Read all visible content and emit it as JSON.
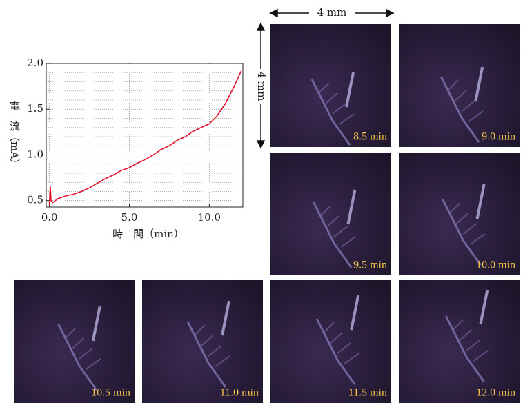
{
  "chart_data": {
    "type": "line",
    "xlabel": "時　間（min）",
    "ylabel": "電　流（mA）",
    "x": [
      0,
      0.05,
      0.1,
      0.2,
      0.3,
      0.5,
      1,
      1.5,
      2,
      2.5,
      3,
      3.5,
      4,
      4.5,
      5,
      5.5,
      6,
      6.5,
      7,
      7.5,
      8,
      8.5,
      9,
      9.5,
      10,
      10.5,
      11,
      11.5,
      12
    ],
    "series": [
      {
        "color": "#e0102a",
        "values": [
          0.45,
          0.66,
          0.5,
          0.48,
          0.49,
          0.52,
          0.55,
          0.57,
          0.6,
          0.64,
          0.69,
          0.74,
          0.78,
          0.83,
          0.86,
          0.91,
          0.95,
          1.0,
          1.06,
          1.1,
          1.16,
          1.2,
          1.26,
          1.3,
          1.34,
          1.43,
          1.56,
          1.73,
          1.92
        ]
      }
    ],
    "xlim": [
      -0.2,
      12.1
    ],
    "ylim": [
      0.43,
      2.0
    ],
    "xticks": [
      {
        "value": 0,
        "label": "0.0"
      },
      {
        "value": 5,
        "label": "5.0"
      },
      {
        "value": 10,
        "label": "10.0"
      }
    ],
    "yticks": [
      0.5,
      {
        "value": 1,
        "label": "1.0"
      },
      1.5,
      {
        "value": 2,
        "label": "2.0"
      }
    ],
    "yminor": [
      0.6,
      0.7,
      0.8,
      0.9,
      1.1,
      1.2,
      1.3,
      1.4,
      1.6,
      1.7,
      1.8,
      1.9
    ],
    "grid": true
  },
  "scale": {
    "horizontal": "4 mm",
    "vertical": "4 mm"
  },
  "panels": [
    {
      "label": "8.5 min"
    },
    {
      "label": "9.0 min"
    },
    {
      "label": "9.5 min"
    },
    {
      "label": "10.0 min"
    },
    {
      "label": "10.5 min"
    },
    {
      "label": "11.0 min"
    },
    {
      "label": "11.5 min"
    },
    {
      "label": "12.0 min"
    }
  ]
}
